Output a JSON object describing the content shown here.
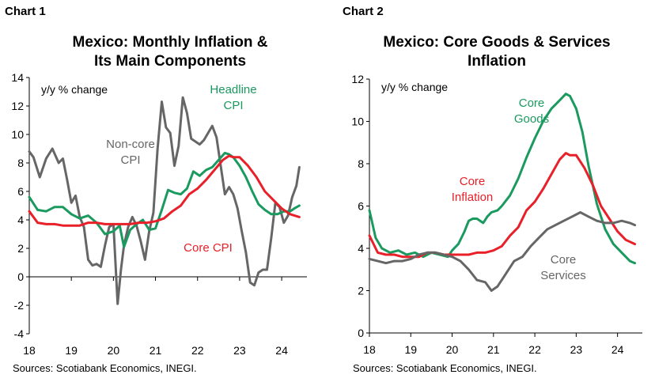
{
  "chart_data": [
    {
      "type": "line",
      "label": "Chart 1",
      "title": [
        "Mexico: Monthly Inflation &",
        "Its Main Components"
      ],
      "unit_label": "y/y % change",
      "ylim": [
        -4,
        14
      ],
      "y_ticks": [
        -4,
        -2,
        0,
        2,
        4,
        6,
        8,
        10,
        12,
        14
      ],
      "xlim": [
        2018,
        2024.6
      ],
      "x_ticks": [
        {
          "label": "18",
          "value": 2018
        },
        {
          "label": "19",
          "value": 2019
        },
        {
          "label": "20",
          "value": 2020
        },
        {
          "label": "21",
          "value": 2021
        },
        {
          "label": "22",
          "value": 2022
        },
        {
          "label": "23",
          "value": 2023
        },
        {
          "label": "24",
          "value": 2024
        }
      ],
      "grid": false,
      "source": "Sources: Scotiabank Economics, INEGI.",
      "series": [
        {
          "name": "Non-core CPI",
          "label_lines": [
            "Non-core",
            "CPI"
          ],
          "color": "#666666",
          "x": [
            2018.0,
            2018.1,
            2018.25,
            2018.4,
            2018.55,
            2018.7,
            2018.8,
            2018.9,
            2019.0,
            2019.1,
            2019.2,
            2019.3,
            2019.4,
            2019.5,
            2019.6,
            2019.7,
            2019.8,
            2019.9,
            2020.0,
            2020.1,
            2020.18,
            2020.25,
            2020.35,
            2020.45,
            2020.55,
            2020.65,
            2020.75,
            2020.85,
            2020.95,
            2021.05,
            2021.15,
            2021.25,
            2021.35,
            2021.45,
            2021.55,
            2021.65,
            2021.75,
            2021.85,
            2021.95,
            2022.05,
            2022.15,
            2022.25,
            2022.35,
            2022.45,
            2022.55,
            2022.65,
            2022.75,
            2022.85,
            2022.95,
            2023.05,
            2023.15,
            2023.25,
            2023.35,
            2023.45,
            2023.55,
            2023.65,
            2023.75,
            2023.85,
            2023.95,
            2024.05,
            2024.15,
            2024.25,
            2024.35,
            2024.42
          ],
          "values": [
            8.8,
            8.4,
            7.0,
            8.3,
            9.0,
            8.0,
            8.3,
            6.8,
            5.2,
            5.7,
            4.2,
            3.5,
            1.2,
            0.8,
            0.9,
            0.7,
            2.2,
            3.5,
            3.7,
            -1.9,
            0.5,
            2.2,
            3.5,
            4.2,
            3.6,
            2.5,
            1.2,
            3.2,
            4.5,
            9.0,
            12.3,
            10.5,
            10.1,
            7.8,
            9.2,
            12.6,
            11.5,
            9.7,
            9.5,
            9.3,
            9.6,
            10.1,
            10.6,
            9.8,
            7.8,
            5.8,
            6.3,
            5.8,
            4.8,
            3.2,
            1.7,
            -0.4,
            -0.6,
            0.3,
            0.5,
            0.5,
            2.7,
            5.2,
            4.9,
            3.8,
            4.3,
            5.6,
            6.4,
            7.7
          ]
        },
        {
          "name": "Headline CPI",
          "label_lines": [
            "Headline",
            "CPI"
          ],
          "color": "#1a9a5e",
          "x": [
            2018.0,
            2018.2,
            2018.4,
            2018.6,
            2018.8,
            2019.0,
            2019.2,
            2019.4,
            2019.6,
            2019.8,
            2020.0,
            2020.15,
            2020.25,
            2020.4,
            2020.55,
            2020.7,
            2020.85,
            2021.0,
            2021.15,
            2021.3,
            2021.45,
            2021.6,
            2021.75,
            2021.9,
            2022.05,
            2022.2,
            2022.35,
            2022.5,
            2022.65,
            2022.75,
            2022.85,
            2023.0,
            2023.15,
            2023.3,
            2023.45,
            2023.6,
            2023.75,
            2023.9,
            2024.05,
            2024.2,
            2024.3,
            2024.42
          ],
          "values": [
            5.6,
            4.7,
            4.6,
            4.9,
            4.9,
            4.4,
            4.1,
            4.3,
            3.8,
            3.0,
            3.2,
            3.6,
            2.1,
            3.3,
            3.7,
            4.0,
            3.3,
            3.4,
            4.7,
            6.1,
            5.9,
            5.8,
            6.2,
            7.4,
            7.1,
            7.5,
            7.7,
            8.2,
            8.7,
            8.6,
            8.4,
            7.8,
            7.0,
            6.0,
            5.1,
            4.7,
            4.4,
            4.4,
            4.6,
            4.6,
            4.8,
            5.0
          ]
        },
        {
          "name": "Core CPI",
          "label_lines": [
            "Core CPI"
          ],
          "color": "#e8202a",
          "x": [
            2018.0,
            2018.2,
            2018.4,
            2018.6,
            2018.8,
            2019.0,
            2019.2,
            2019.4,
            2019.6,
            2019.8,
            2020.0,
            2020.2,
            2020.4,
            2020.6,
            2020.8,
            2021.0,
            2021.2,
            2021.4,
            2021.6,
            2021.8,
            2022.0,
            2022.2,
            2022.4,
            2022.6,
            2022.75,
            2022.85,
            2023.0,
            2023.2,
            2023.4,
            2023.6,
            2023.8,
            2024.0,
            2024.2,
            2024.42
          ],
          "values": [
            4.6,
            3.8,
            3.7,
            3.7,
            3.6,
            3.6,
            3.6,
            3.8,
            3.8,
            3.7,
            3.7,
            3.7,
            3.7,
            3.8,
            3.8,
            3.9,
            4.1,
            4.6,
            5.0,
            5.8,
            6.2,
            6.8,
            7.5,
            8.2,
            8.5,
            8.4,
            8.4,
            7.8,
            7.0,
            6.0,
            5.4,
            4.8,
            4.4,
            4.2
          ]
        }
      ]
    },
    {
      "type": "line",
      "label": "Chart 2",
      "title": [
        "Mexico: Core Goods & Services",
        "Inflation"
      ],
      "unit_label": "y/y % change",
      "ylim": [
        0,
        12
      ],
      "y_ticks": [
        0,
        2,
        4,
        6,
        8,
        10,
        12
      ],
      "xlim": [
        2018,
        2024.6
      ],
      "x_ticks": [
        {
          "label": "18",
          "value": 2018
        },
        {
          "label": "19",
          "value": 2019
        },
        {
          "label": "20",
          "value": 2020
        },
        {
          "label": "21",
          "value": 2021
        },
        {
          "label": "22",
          "value": 2022
        },
        {
          "label": "23",
          "value": 2023
        },
        {
          "label": "24",
          "value": 2024
        }
      ],
      "grid": false,
      "source": "Sources: Scotiabank Economics, INEGI.",
      "series": [
        {
          "name": "Core Goods",
          "label_lines": [
            "Core",
            "Goods"
          ],
          "color": "#1a9a5e",
          "x": [
            2018.0,
            2018.15,
            2018.3,
            2018.5,
            2018.7,
            2018.9,
            2019.1,
            2019.3,
            2019.5,
            2019.7,
            2019.9,
            2020.0,
            2020.15,
            2020.3,
            2020.4,
            2020.5,
            2020.6,
            2020.75,
            2020.85,
            2020.95,
            2021.1,
            2021.2,
            2021.4,
            2021.6,
            2021.8,
            2022.0,
            2022.2,
            2022.4,
            2022.6,
            2022.75,
            2022.85,
            2023.0,
            2023.15,
            2023.3,
            2023.5,
            2023.7,
            2023.9,
            2024.1,
            2024.3,
            2024.42
          ],
          "values": [
            5.8,
            4.5,
            4.0,
            3.8,
            3.9,
            3.7,
            3.8,
            3.6,
            3.8,
            3.7,
            3.6,
            3.9,
            4.2,
            4.8,
            5.3,
            5.4,
            5.4,
            5.2,
            5.5,
            5.7,
            5.8,
            6.0,
            6.5,
            7.3,
            8.3,
            9.2,
            10.0,
            10.6,
            11.0,
            11.3,
            11.2,
            10.6,
            9.5,
            7.9,
            6.1,
            4.9,
            4.2,
            3.8,
            3.4,
            3.3
          ]
        },
        {
          "name": "Core Inflation",
          "label_lines": [
            "Core",
            "Inflation"
          ],
          "color": "#e8202a",
          "x": [
            2018.0,
            2018.2,
            2018.4,
            2018.6,
            2018.8,
            2019.0,
            2019.2,
            2019.4,
            2019.6,
            2019.8,
            2020.0,
            2020.2,
            2020.4,
            2020.6,
            2020.8,
            2021.0,
            2021.2,
            2021.4,
            2021.6,
            2021.8,
            2022.0,
            2022.2,
            2022.4,
            2022.6,
            2022.75,
            2022.85,
            2023.0,
            2023.2,
            2023.4,
            2023.6,
            2023.8,
            2024.0,
            2024.2,
            2024.42
          ],
          "values": [
            4.6,
            3.8,
            3.7,
            3.7,
            3.6,
            3.6,
            3.6,
            3.8,
            3.8,
            3.7,
            3.7,
            3.7,
            3.7,
            3.8,
            3.8,
            3.9,
            4.1,
            4.6,
            5.0,
            5.8,
            6.2,
            6.8,
            7.5,
            8.2,
            8.5,
            8.4,
            8.4,
            7.8,
            7.0,
            6.0,
            5.4,
            4.8,
            4.4,
            4.2
          ]
        },
        {
          "name": "Core Services",
          "label_lines": [
            "Core",
            "Services"
          ],
          "color": "#666666",
          "x": [
            2018.0,
            2018.2,
            2018.4,
            2018.6,
            2018.8,
            2019.0,
            2019.2,
            2019.4,
            2019.6,
            2019.8,
            2020.0,
            2020.2,
            2020.4,
            2020.6,
            2020.8,
            2020.95,
            2021.1,
            2021.3,
            2021.5,
            2021.7,
            2021.9,
            2022.1,
            2022.3,
            2022.5,
            2022.7,
            2022.9,
            2023.1,
            2023.3,
            2023.5,
            2023.7,
            2023.9,
            2024.1,
            2024.3,
            2024.42
          ],
          "values": [
            3.5,
            3.4,
            3.3,
            3.4,
            3.4,
            3.5,
            3.7,
            3.8,
            3.8,
            3.7,
            3.6,
            3.4,
            3.0,
            2.5,
            2.4,
            2.0,
            2.2,
            2.8,
            3.4,
            3.6,
            4.1,
            4.5,
            4.9,
            5.1,
            5.3,
            5.5,
            5.7,
            5.5,
            5.3,
            5.2,
            5.2,
            5.3,
            5.2,
            5.1
          ]
        }
      ]
    }
  ]
}
